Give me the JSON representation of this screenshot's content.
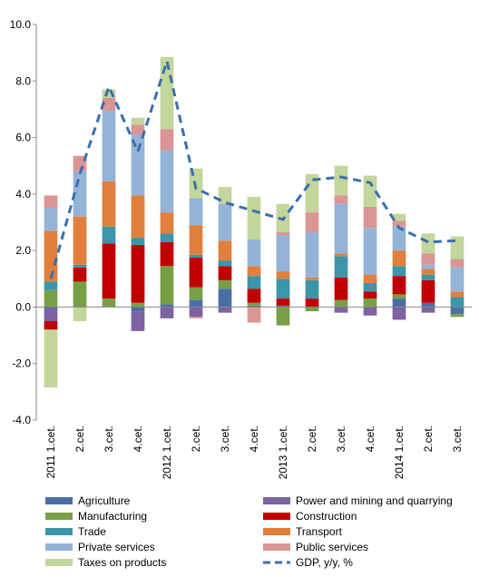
{
  "chart_data": {
    "type": "bar",
    "stacked": true,
    "categories": [
      "2011 1.cet.",
      "2.cet.",
      "3.cet.",
      "4.cet.",
      "2012 1.cet.",
      "2.cet.",
      "3.cet.",
      "4.cet.",
      "2013 1.cet.",
      "2.cet.",
      "3.cet.",
      "4.cet.",
      "2014 1.cet.",
      "2.cet.",
      "3.cet."
    ],
    "ylim": [
      -4,
      10
    ],
    "yticks": [
      {
        "value": -4,
        "label": "-4.0"
      },
      {
        "value": -2,
        "label": "-2.0"
      },
      {
        "value": 0,
        "label": "0.0"
      },
      {
        "value": 2,
        "label": "2.0"
      },
      {
        "value": 4,
        "label": "4.0"
      },
      {
        "value": 6,
        "label": "6.0"
      },
      {
        "value": 8,
        "label": "8.0"
      },
      {
        "value": 10,
        "label": "10.0"
      }
    ],
    "grid": false,
    "series": [
      {
        "name": "Agriculture",
        "color": "#4a6fa5",
        "values": [
          -0.05,
          0,
          0,
          -0.15,
          0.1,
          0.25,
          0.65,
          0.05,
          0.05,
          0,
          0,
          0,
          0.3,
          0.15,
          -0.25
        ]
      },
      {
        "name": "Power and mining and quarrying",
        "color": "#7e62a1",
        "values": [
          -0.45,
          0,
          0,
          -0.7,
          -0.4,
          -0.35,
          -0.2,
          0,
          0,
          0,
          -0.2,
          -0.3,
          -0.45,
          -0.2,
          0
        ]
      },
      {
        "name": "Manufacturing",
        "color": "#77a046",
        "values": [
          0.6,
          0.9,
          0.3,
          0.15,
          1.35,
          0.45,
          0.3,
          0.1,
          -0.65,
          -0.15,
          0.25,
          0.3,
          0.15,
          0,
          -0.1
        ]
      },
      {
        "name": "Construction",
        "color": "#c00000",
        "values": [
          -0.3,
          0.5,
          1.95,
          2.05,
          0.85,
          1.05,
          0.5,
          0.5,
          0.25,
          0.3,
          0.8,
          0.25,
          0.65,
          0.8,
          0
        ]
      },
      {
        "name": "Trade",
        "color": "#3a96a8",
        "values": [
          0.3,
          0.1,
          0.6,
          0.25,
          0.3,
          0.1,
          0.2,
          0.45,
          0.7,
          0.65,
          0.75,
          0.3,
          0.35,
          0.2,
          0.35
        ]
      },
      {
        "name": "Transport",
        "color": "#e0803c",
        "values": [
          1.8,
          1.7,
          1.6,
          1.5,
          0.75,
          1.05,
          0.7,
          0.35,
          0.25,
          0.1,
          0.1,
          0.3,
          0.55,
          0.2,
          0.2
        ]
      },
      {
        "name": "Private services",
        "color": "#95b3d7",
        "values": [
          0.8,
          1.6,
          2.5,
          2.15,
          2.2,
          0.95,
          1.3,
          0.95,
          1.3,
          1.6,
          1.75,
          1.65,
          0.85,
          0.15,
          0.85
        ]
      },
      {
        "name": "Public services",
        "color": "#d99694",
        "values": [
          0.45,
          0.55,
          0.45,
          0.35,
          0.75,
          -0.05,
          0,
          -0.55,
          0.1,
          0.7,
          0.3,
          0.75,
          0.2,
          0.4,
          0.3
        ]
      },
      {
        "name": "Taxes on products",
        "color": "#c3d69b",
        "values": [
          -2.05,
          -0.5,
          0.3,
          0.25,
          2.55,
          1.05,
          0.6,
          1.5,
          1.0,
          1.35,
          1.05,
          1.1,
          0.25,
          0.7,
          0.8
        ]
      },
      {
        "name": "GDP, y/y, %",
        "color": "#3a6fb0",
        "type": "line",
        "dashed": true,
        "values": [
          1.0,
          4.7,
          7.8,
          5.5,
          8.7,
          4.2,
          3.7,
          3.4,
          3.1,
          4.5,
          4.6,
          4.4,
          2.8,
          2.3,
          2.35
        ]
      }
    ]
  }
}
